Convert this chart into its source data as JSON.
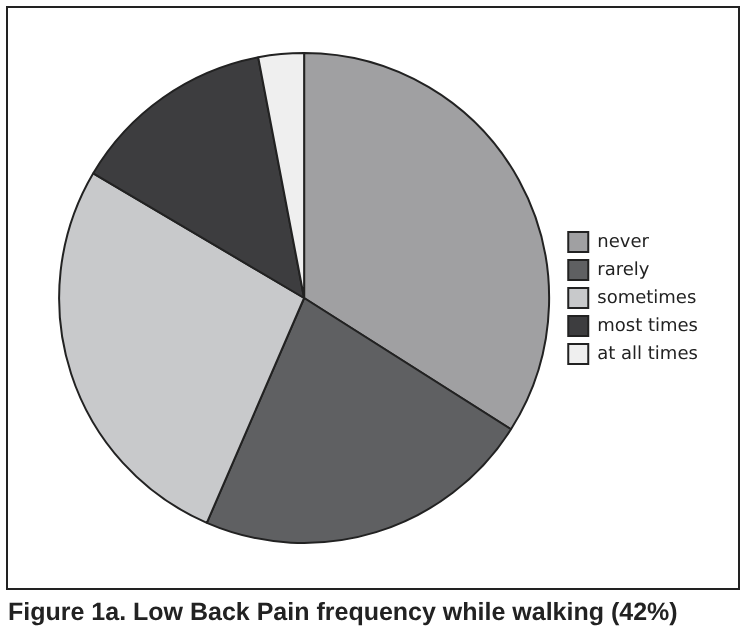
{
  "chart_data": {
    "type": "pie",
    "title": "Figure 1a. Low Back Pain frequency while walking (42%)",
    "categories": [
      "never",
      "rarely",
      "sometimes",
      "most times",
      "at all times"
    ],
    "values": [
      34,
      22.5,
      27,
      13.5,
      3
    ],
    "colors": [
      "#a0a0a2",
      "#5f6062",
      "#c8c9cb",
      "#3d3d3f",
      "#efefef"
    ],
    "legend": "right"
  }
}
